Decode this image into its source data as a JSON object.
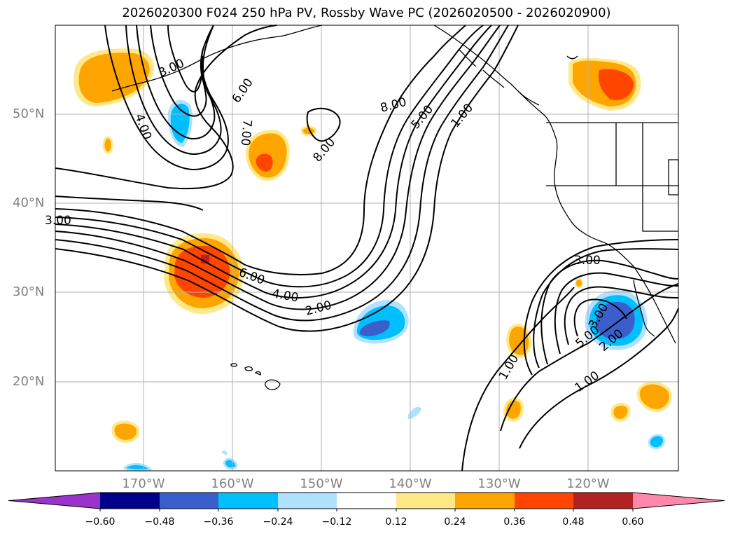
{
  "title": "2026020300 F024 250 hPa PV, Rossby Wave PC (2026020500 - 2026020900)",
  "latitude_labels": [
    "50°N",
    "40°N",
    "30°N",
    "20°N"
  ],
  "longitude_labels": [
    "170°W",
    "160°W",
    "150°W",
    "140°W",
    "130°W",
    "120°W"
  ],
  "colorbar": {
    "tick_labels": [
      "−0.60",
      "−0.48",
      "−0.36",
      "−0.24",
      "−0.12",
      "0.12",
      "0.24",
      "0.36",
      "0.48",
      "0.60"
    ],
    "colors": [
      "#9933cc",
      "#00008b",
      "#3a5fcd",
      "#00bfff",
      "#b0e2ff",
      "#ffffff",
      "#ffe888",
      "#ffa500",
      "#ff4500",
      "#b22222",
      "#ff88aa"
    ]
  },
  "contour_labels": {
    "c1": "3.00",
    "c2": "4.00",
    "c3": "6.00",
    "c4": "7.00",
    "c5": "8.00",
    "c6": "8.00",
    "c7": "5.00",
    "c8": "1.00",
    "c9": "3.00",
    "c10": "6.00",
    "c11": "4.00",
    "c12": "2.00",
    "c13": "3.00",
    "c14": "5.00",
    "c15": "2.00",
    "c16": "1.00",
    "c17": "1.00",
    "c18": "3.00"
  },
  "colors": {
    "coast": "#000000",
    "grid": "#b0b0b0",
    "label": "#808080"
  }
}
